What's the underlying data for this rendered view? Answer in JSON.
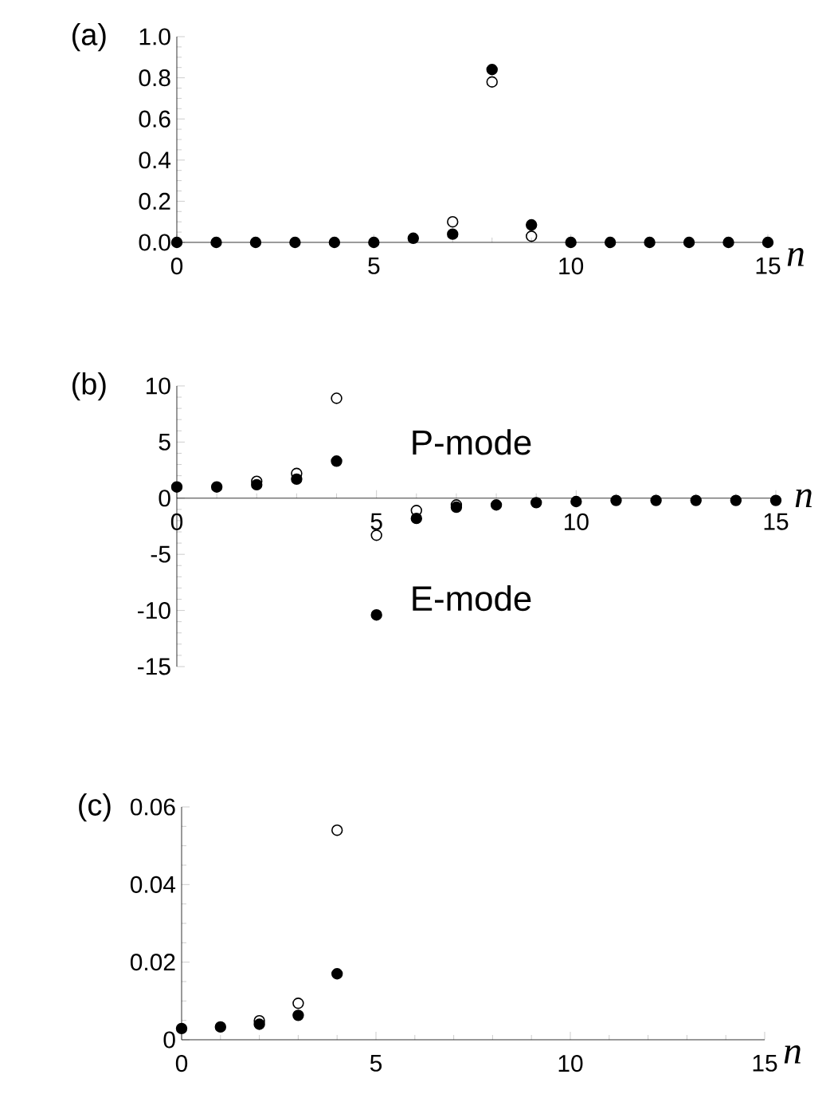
{
  "chart_data": [
    {
      "type": "scatter",
      "title": "(a)",
      "xlabel": "n",
      "x": [
        0,
        1,
        2,
        3,
        4,
        5,
        6,
        7,
        8,
        9,
        10,
        11,
        12,
        13,
        14,
        15
      ],
      "xlim": [
        0,
        15
      ],
      "xticks": [
        0,
        5,
        10,
        15
      ],
      "ylim": [
        0,
        1.0
      ],
      "yticks": [
        {
          "value": 0,
          "label": "0.0"
        },
        {
          "value": 0.2,
          "label": "0.2"
        },
        {
          "value": 0.4,
          "label": "0.4"
        },
        {
          "value": 0.6,
          "label": "0.6"
        },
        {
          "value": 0.8,
          "label": "0.8"
        },
        {
          "value": 1.0,
          "label": "1.0"
        }
      ],
      "marker": "circle",
      "grid": false,
      "series": [
        {
          "color": "#000000",
          "values": [
            null,
            null,
            null,
            null,
            null,
            null,
            null,
            0.1,
            0.78,
            0.03,
            null,
            null,
            null,
            null,
            null,
            null
          ]
        },
        {
          "color": "#000000",
          "values": [
            0,
            0,
            0,
            0,
            0,
            0,
            0.02,
            0.04,
            0.84,
            0.085,
            0,
            0,
            0,
            0,
            0,
            0
          ]
        }
      ]
    },
    {
      "type": "scatter",
      "title": "(b)",
      "xlabel": "n",
      "annotations": [
        "P-mode",
        "E-mode"
      ],
      "x": [
        0,
        1,
        2,
        3,
        4,
        5,
        6,
        7,
        8,
        9,
        10,
        11,
        12,
        13,
        14,
        15
      ],
      "xlim": [
        0,
        15
      ],
      "xticks": [
        0,
        5,
        10,
        15
      ],
      "ylim": [
        -15,
        10
      ],
      "yticks": [
        -15,
        -10,
        -5,
        0,
        5,
        10
      ],
      "marker": "circle",
      "grid": false,
      "series": [
        {
          "color": "#000000",
          "values": [
            null,
            null,
            1.5,
            2.2,
            8.9,
            -3.3,
            -1.1,
            -0.6,
            null,
            null,
            null,
            null,
            null,
            null,
            null,
            null
          ]
        },
        {
          "color": "#000000",
          "values": [
            1.0,
            1.0,
            1.2,
            1.7,
            3.3,
            -10.4,
            -1.8,
            -0.8,
            -0.6,
            -0.4,
            -0.3,
            -0.2,
            -0.2,
            -0.2,
            -0.2,
            -0.2
          ]
        }
      ]
    },
    {
      "type": "scatter",
      "title": "(c)",
      "xlabel": "n",
      "x": [
        0,
        1,
        2,
        3,
        4
      ],
      "xlim": [
        0,
        15
      ],
      "xticks": [
        0,
        5,
        10,
        15
      ],
      "ylim": [
        0,
        0.06
      ],
      "yticks": [
        0,
        0.02,
        0.04,
        0.06
      ],
      "marker": "circle",
      "grid": false,
      "series": [
        {
          "color": "#000000",
          "values": [
            null,
            null,
            0.0049,
            0.0094,
            0.054
          ]
        },
        {
          "color": "#000000",
          "values": [
            0.0029,
            0.0033,
            0.004,
            0.0063,
            0.017
          ]
        }
      ]
    }
  ]
}
